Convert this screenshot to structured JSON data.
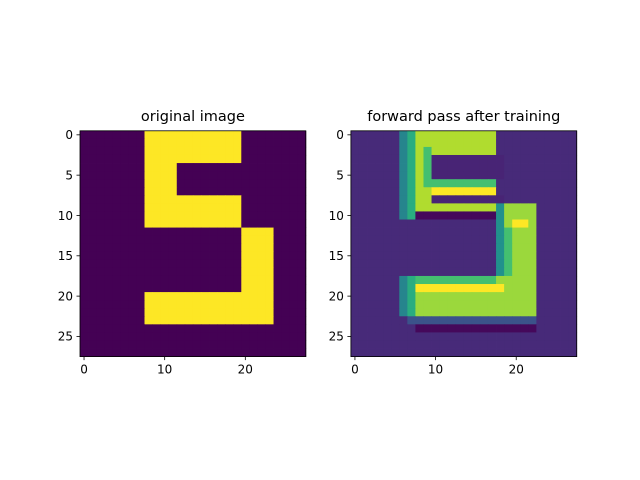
{
  "chart_data": [
    {
      "type": "heatmap",
      "title": "original image",
      "shape": [
        28,
        28
      ],
      "colormap": "viridis",
      "value_range": [
        0,
        1
      ],
      "xlim": [
        -0.5,
        27.5
      ],
      "ylim": [
        27.5,
        -0.5
      ],
      "xticks": [
        0,
        10,
        20
      ],
      "yticks": [
        0,
        5,
        10,
        15,
        20,
        25
      ],
      "xlabel": "",
      "ylabel": "",
      "grid": false,
      "cells": {
        "background": 0,
        "regions": [
          {
            "rows": [
              0,
              3
            ],
            "cols": [
              8,
              19
            ],
            "value": 1
          },
          {
            "rows": [
              4,
              7
            ],
            "cols": [
              8,
              11
            ],
            "value": 1
          },
          {
            "rows": [
              8,
              11
            ],
            "cols": [
              8,
              19
            ],
            "value": 1
          },
          {
            "rows": [
              12,
              19
            ],
            "cols": [
              20,
              23
            ],
            "value": 1
          },
          {
            "rows": [
              20,
              23
            ],
            "cols": [
              8,
              23
            ],
            "value": 1
          }
        ]
      }
    },
    {
      "type": "heatmap",
      "title": "forward pass after training",
      "shape": [
        28,
        28
      ],
      "colormap": "viridis",
      "value_range": [
        0,
        1
      ],
      "xlim": [
        -0.5,
        27.5
      ],
      "ylim": [
        27.5,
        -0.5
      ],
      "xticks": [
        0,
        10,
        20
      ],
      "yticks": [
        0,
        5,
        10,
        15,
        20,
        25
      ],
      "xlabel": "",
      "ylabel": "",
      "grid": false,
      "cells": {
        "background": 0.12,
        "regions": [
          {
            "rows": [
              0,
              10
            ],
            "cols": [
              6,
              6
            ],
            "value": 0.45
          },
          {
            "rows": [
              0,
              10
            ],
            "cols": [
              7,
              7
            ],
            "value": 0.62
          },
          {
            "rows": [
              0,
              9
            ],
            "cols": [
              8,
              17
            ],
            "value": 0.88
          },
          {
            "rows": [
              3,
              5
            ],
            "cols": [
              9,
              18
            ],
            "value": 0.1
          },
          {
            "rows": [
              2,
              6
            ],
            "cols": [
              9,
              9
            ],
            "value": 0.7
          },
          {
            "rows": [
              6,
              6
            ],
            "cols": [
              10,
              17
            ],
            "value": 0.7
          },
          {
            "rows": [
              7,
              7
            ],
            "cols": [
              10,
              17
            ],
            "value": 1.0
          },
          {
            "rows": [
              8,
              8
            ],
            "cols": [
              10,
              18
            ],
            "value": 0.1
          },
          {
            "rows": [
              10,
              10
            ],
            "cols": [
              8,
              17
            ],
            "value": 0.02
          },
          {
            "rows": [
              9,
              23
            ],
            "cols": [
              18,
              18
            ],
            "value": 0.5
          },
          {
            "rows": [
              9,
              23
            ],
            "cols": [
              19,
              22
            ],
            "value": 0.85
          },
          {
            "rows": [
              11,
              11
            ],
            "cols": [
              20,
              21
            ],
            "value": 1.0
          },
          {
            "rows": [
              12,
              20
            ],
            "cols": [
              19,
              19
            ],
            "value": 0.7
          },
          {
            "rows": [
              18,
              22
            ],
            "cols": [
              6,
              6
            ],
            "value": 0.45
          },
          {
            "rows": [
              18,
              22
            ],
            "cols": [
              7,
              7
            ],
            "value": 0.62
          },
          {
            "rows": [
              18,
              22
            ],
            "cols": [
              8,
              22
            ],
            "value": 0.85
          },
          {
            "rows": [
              18,
              18
            ],
            "cols": [
              8,
              17
            ],
            "value": 0.7
          },
          {
            "rows": [
              19,
              19
            ],
            "cols": [
              8,
              18
            ],
            "value": 1.0
          },
          {
            "rows": [
              20,
              21
            ],
            "cols": [
              8,
              18
            ],
            "value": 0.85
          },
          {
            "rows": [
              23,
              23
            ],
            "cols": [
              7,
              22
            ],
            "value": 0.25
          },
          {
            "rows": [
              24,
              24
            ],
            "cols": [
              8,
              22
            ],
            "value": 0.02
          }
        ]
      }
    }
  ]
}
